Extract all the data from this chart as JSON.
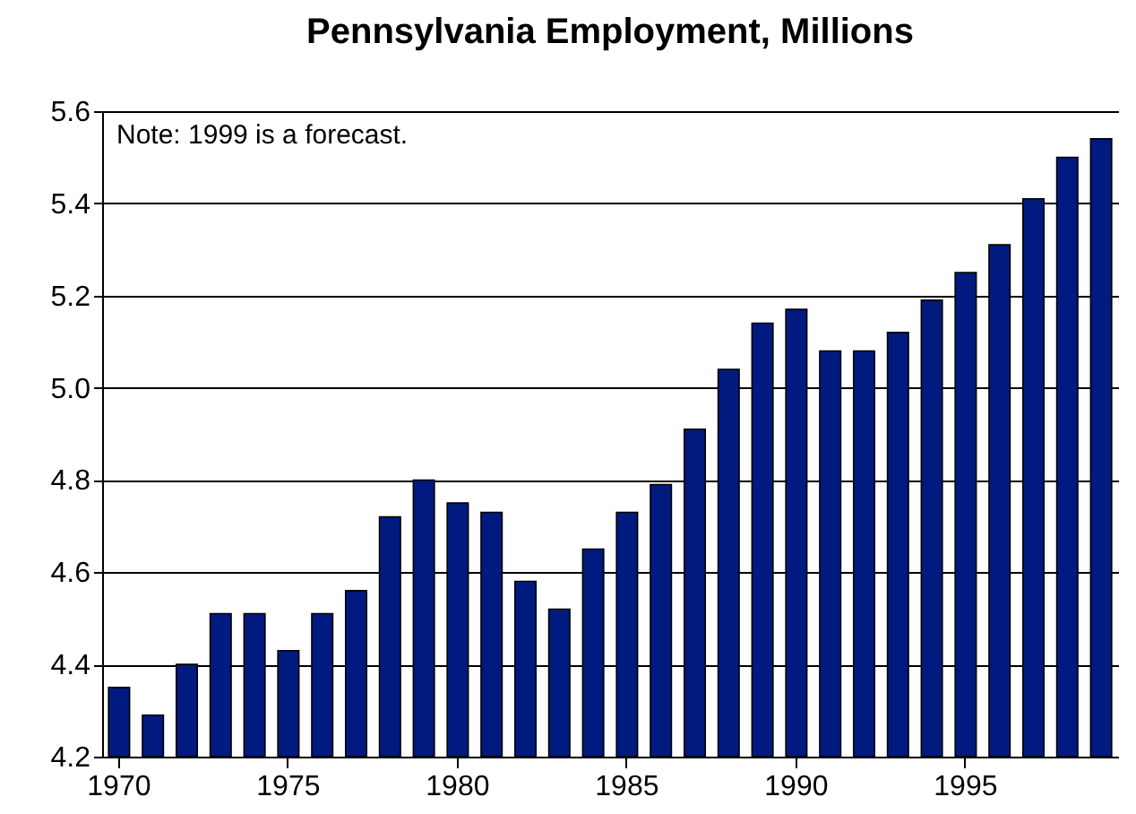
{
  "chart_data": {
    "type": "bar",
    "title": "Pennsylvania Employment, Millions",
    "categories": [
      "1970",
      null,
      null,
      null,
      null,
      "1975",
      null,
      null,
      null,
      null,
      "1980",
      null,
      null,
      null,
      null,
      "1985",
      null,
      null,
      null,
      null,
      "1990",
      null,
      null,
      null,
      null,
      "1995",
      null,
      null,
      null,
      null
    ],
    "values": [
      4.35,
      4.29,
      4.4,
      4.51,
      4.51,
      4.43,
      4.51,
      4.56,
      4.72,
      4.8,
      4.75,
      4.73,
      4.58,
      4.52,
      4.65,
      4.73,
      4.79,
      4.91,
      5.04,
      5.14,
      5.17,
      5.08,
      5.08,
      5.12,
      5.19,
      5.25,
      5.31,
      5.41,
      5.5,
      5.54
    ],
    "color": "#001a80",
    "ylim": [
      4.2,
      5.6
    ],
    "yticks": [
      4.2,
      4.4,
      4.6,
      4.8,
      {
        "value": 5,
        "label": "5.0"
      },
      5.2,
      5.4,
      5.6
    ],
    "grid": "y",
    "annotations": [
      "Note: 1999 is a forecast."
    ]
  }
}
